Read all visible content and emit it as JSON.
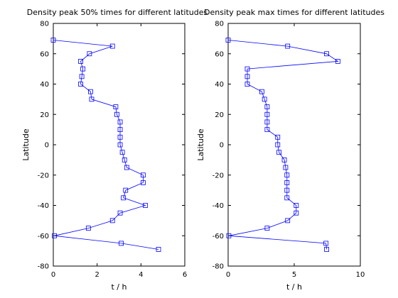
{
  "chart_data": [
    {
      "type": "line",
      "title": "Density peak 50% times for different latitudes",
      "xlabel": "t / h",
      "ylabel": "Latitude",
      "xlim": [
        0,
        6
      ],
      "ylim": [
        -80,
        80
      ],
      "xticks": [
        0,
        2,
        4,
        6
      ],
      "yticks": [
        -80,
        -60,
        -40,
        -20,
        0,
        20,
        40,
        60,
        80
      ],
      "grid": false,
      "series": [
        {
          "marker": "square",
          "color": "#0000ff",
          "x": [
            0.0,
            2.7,
            1.65,
            1.25,
            1.35,
            1.3,
            1.25,
            1.7,
            1.75,
            2.85,
            2.9,
            3.05,
            3.05,
            3.05,
            3.05,
            3.15,
            3.25,
            3.35,
            4.1,
            4.1,
            3.3,
            3.2,
            4.2,
            3.05,
            2.7,
            1.6,
            0.05,
            3.1,
            4.8
          ],
          "y": [
            69,
            65,
            60,
            55,
            50,
            45,
            40,
            35,
            30,
            25,
            20,
            15,
            10,
            5,
            0,
            -5,
            -10,
            -15,
            -20,
            -25,
            -30,
            -35,
            -40,
            -45,
            -50,
            -55,
            -60,
            -65,
            -69
          ]
        }
      ]
    },
    {
      "type": "line",
      "title": "Density peak max times for different latitudes",
      "xlabel": "t / h",
      "ylabel": "Latitude",
      "xlim": [
        0,
        10
      ],
      "ylim": [
        -80,
        80
      ],
      "xticks": [
        0,
        5,
        10
      ],
      "yticks": [
        -80,
        -60,
        -40,
        -20,
        0,
        20,
        40,
        60,
        80
      ],
      "grid": false,
      "series": [
        {
          "marker": "square",
          "color": "#0000ff",
          "x": [
            0.0,
            4.5,
            7.45,
            8.3,
            1.45,
            1.45,
            1.45,
            2.55,
            2.75,
            2.95,
            2.95,
            2.95,
            2.95,
            3.75,
            3.75,
            3.85,
            4.25,
            4.35,
            4.45,
            4.45,
            4.45,
            4.45,
            5.15,
            5.15,
            4.5,
            2.95,
            0.05,
            7.4,
            7.45
          ],
          "y": [
            69,
            65,
            60,
            55,
            50,
            45,
            40,
            35,
            30,
            25,
            20,
            15,
            10,
            5,
            0,
            -5,
            -10,
            -15,
            -20,
            -25,
            -30,
            -35,
            -40,
            -45,
            -50,
            -55,
            -60,
            -65,
            -69
          ]
        }
      ]
    }
  ]
}
